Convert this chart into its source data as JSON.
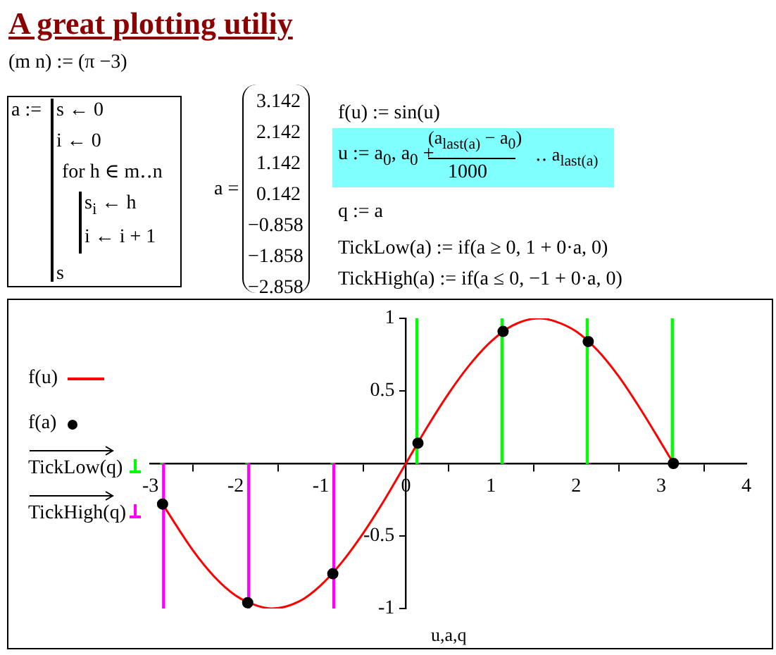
{
  "chart_data": {
    "type": "line",
    "title": "A great plotting utiliy",
    "xlabel": "u,a,q",
    "legend": "left",
    "annotations": [
      "(m  n) := (π  −3)",
      "a :=",
      "s ← 0",
      "i ← 0",
      "for  h ∈ m‥n",
      "s$_{i}$ ← h",
      "i ← i + 1",
      "s",
      "a =",
      "3.142",
      "2.142",
      "1.142",
      "0.142",
      "−0.858",
      "−1.858",
      "−2.858",
      "f(u) := sin(u)",
      "u := a$_{0}$, a$_{0}$ +",
      "(a$_{last(a)}$ − a$_{0}$)",
      "1000",
      "‥ a$_{last(a)}$",
      "q := a",
      "TickLow(a) := if(a ≥ 0, 1 + 0·a, 0)",
      "TickHigh(a) := if(a ≤ 0, −1 + 0·a, 0)"
    ],
    "xlim": [
      -3,
      4
    ],
    "ylim": [
      -1,
      1
    ],
    "xticks": [
      -3,
      -2,
      -1,
      0,
      1,
      2,
      3,
      4
    ],
    "yticks": [
      -1,
      -0.5,
      0.5,
      1
    ],
    "series": [
      {
        "name": "f(u)",
        "color": "#ff0000",
        "x": [
          -2.858,
          -2.5,
          -2.25,
          -2,
          -1.75,
          -1.571,
          -1.25,
          -1,
          -0.75,
          -0.5,
          -0.25,
          0,
          0.25,
          0.5,
          0.75,
          1,
          1.25,
          1.571,
          1.75,
          2,
          2.25,
          2.5,
          2.75,
          3,
          3.142
        ],
        "values": [
          -0.28,
          -0.6,
          -0.78,
          -0.91,
          -0.98,
          -1,
          -0.95,
          -0.84,
          -0.68,
          -0.48,
          -0.25,
          0,
          0.25,
          0.48,
          0.68,
          0.84,
          0.95,
          1,
          0.98,
          0.91,
          0.78,
          0.6,
          0.38,
          0.14,
          0
        ]
      },
      {
        "name": "f(a)",
        "type": "scatter",
        "marker": "circle",
        "color": "#000000",
        "x": [
          3.142,
          2.142,
          1.142,
          0.142,
          -0.858,
          -1.858,
          -2.858
        ],
        "values": [
          0,
          0.84,
          0.91,
          0.14,
          -0.76,
          -0.96,
          -0.28
        ]
      },
      {
        "name": "TickLow(q)",
        "type": "bar",
        "color": "#00ff00",
        "x": [
          3.142,
          2.142,
          1.142,
          0.142,
          -0.858,
          -1.858,
          -2.858
        ],
        "values": [
          1,
          1,
          1,
          1,
          0,
          0,
          0
        ]
      },
      {
        "name": "TickHigh(q)",
        "type": "bar",
        "color": "#ff00ff",
        "x": [
          3.142,
          2.142,
          1.142,
          0.142,
          -0.858,
          -1.858,
          -2.858
        ],
        "values": [
          0,
          0,
          0,
          0,
          -1,
          -1,
          -1
        ]
      }
    ]
  }
}
